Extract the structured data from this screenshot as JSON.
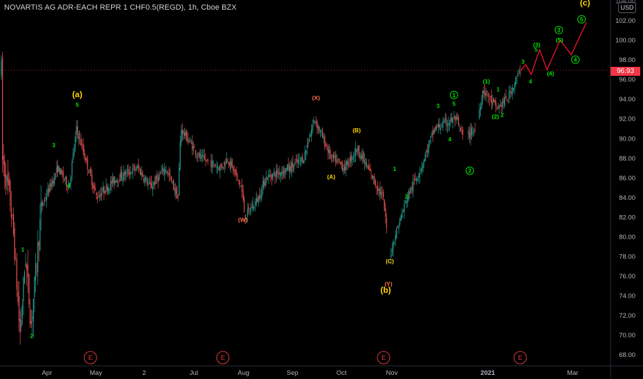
{
  "header": {
    "symbol_title": "NOVARTIS AG ADR-EACH REPR 1 CHF0.5(REGD), 1h, Cboe BZX",
    "currency": "USD"
  },
  "colors": {
    "background": "#000000",
    "up_candle": "#26a69a",
    "down_candle": "#ef5350",
    "wave_green": "#00e600",
    "wave_yellow": "#ffd600",
    "wave_red_label": "#ff6b4a",
    "projection_line": "#e8112d",
    "earnings_marker": "#e03a3a",
    "axis_text": "#b2b5be",
    "last_price_bg": "#f23645"
  },
  "chart_data": {
    "type": "candlestick",
    "title": "NOVARTIS AG ADR-EACH REPR 1 CHF0.5(REGD), 1h, Cboe BZX",
    "currency": "USD",
    "last_price": 96.93,
    "ylim": [
      67,
      104
    ],
    "y_ticks": [
      68,
      70,
      72,
      74,
      76,
      78,
      80,
      82,
      84,
      86,
      88,
      90,
      92,
      94,
      96,
      98,
      100,
      102,
      104
    ],
    "x_ticks": [
      "Apr",
      "May",
      "2",
      "Jul",
      "Aug",
      "Sep",
      "Oct",
      "Nov",
      "2021",
      "Mar"
    ],
    "grid": false,
    "price_path": [
      [
        "Mar",
        88
      ],
      [
        "Mar",
        84
      ],
      [
        "Mar",
        80
      ],
      [
        "Mar",
        70
      ],
      [
        "Mar",
        78
      ],
      [
        "Apr",
        71
      ],
      [
        "Apr",
        83
      ],
      [
        "Apr",
        87
      ],
      [
        "Apr",
        85
      ],
      [
        "May",
        91
      ],
      [
        "May",
        84
      ],
      [
        "May",
        86
      ],
      [
        "May",
        87
      ],
      [
        "Jun",
        85
      ],
      [
        "Jun",
        87
      ],
      [
        "Jun",
        84
      ],
      [
        "Jun",
        91
      ],
      [
        "Jul",
        88
      ],
      [
        "Jul",
        87
      ],
      [
        "Jul",
        88
      ],
      [
        "Aug",
        85
      ],
      [
        "Aug",
        82
      ],
      [
        "Aug",
        84
      ],
      [
        "Aug",
        86
      ],
      [
        "Sep",
        87
      ],
      [
        "Sep",
        88
      ],
      [
        "Sep",
        92
      ],
      [
        "Oct",
        88
      ],
      [
        "Oct",
        87
      ],
      [
        "Oct",
        89
      ],
      [
        "Oct",
        86
      ],
      [
        "Nov",
        84
      ],
      [
        "Nov",
        78
      ],
      [
        "Nov",
        80
      ],
      [
        "Nov",
        84
      ],
      [
        "Nov",
        87
      ],
      [
        "Dec",
        91
      ],
      [
        "Dec",
        92
      ],
      [
        "Dec",
        90
      ],
      [
        "Dec",
        91
      ],
      [
        "Dec",
        95
      ],
      [
        "2021",
        93
      ],
      [
        "2021",
        94
      ],
      [
        "2021",
        97
      ]
    ],
    "projection": [
      [
        "Jan",
        96.9
      ],
      [
        "Jan",
        97.5
      ],
      [
        "Feb",
        96.5
      ],
      [
        "Feb",
        99
      ],
      [
        "Feb",
        97
      ],
      [
        "Feb",
        100
      ],
      [
        "Mar",
        98.5
      ],
      [
        "Mar",
        101.8
      ]
    ],
    "wave_labels": [
      {
        "text": "(a)",
        "price": 94.2,
        "color": "yellow",
        "size": "large"
      },
      {
        "text": "5",
        "price": 93.2,
        "color": "green"
      },
      {
        "text": "3",
        "price": 89.1,
        "color": "green"
      },
      {
        "text": "4",
        "price": 85.0,
        "color": "green"
      },
      {
        "text": "1",
        "price": 78.5,
        "color": "green"
      },
      {
        "text": "2",
        "price": 69.7,
        "color": "green"
      },
      {
        "text": "(X)",
        "price": 93.9,
        "color": "red"
      },
      {
        "text": "(W)",
        "price": 81.5,
        "color": "red"
      },
      {
        "text": "(B)",
        "price": 90.6,
        "color": "yellow"
      },
      {
        "text": "(A)",
        "price": 85.9,
        "color": "yellow"
      },
      {
        "text": "(C)",
        "price": 77.3,
        "color": "yellow"
      },
      {
        "text": "(Y)",
        "price": 75.0,
        "color": "red"
      },
      {
        "text": "(b)",
        "price": 74.3,
        "color": "yellow",
        "size": "large"
      },
      {
        "text": "1",
        "price": 86.7,
        "color": "green"
      },
      {
        "text": "2",
        "price": 83.9,
        "color": "green"
      },
      {
        "text": "3",
        "price": 93.1,
        "color": "green"
      },
      {
        "text": "4",
        "price": 89.7,
        "color": "green"
      },
      {
        "text": "5",
        "price": 93.3,
        "color": "green"
      },
      {
        "text": "1",
        "price": 94.2,
        "color": "green",
        "circled": true
      },
      {
        "text": "2",
        "price": 86.5,
        "color": "green",
        "circled": true
      },
      {
        "text": "(1)",
        "price": 95.6,
        "color": "green"
      },
      {
        "text": "1",
        "price": 94.8,
        "color": "green"
      },
      {
        "text": "(2)",
        "price": 92.0,
        "color": "green"
      },
      {
        "text": "2",
        "price": 92.2,
        "color": "green"
      },
      {
        "text": "3",
        "price": 97.6,
        "color": "green"
      },
      {
        "text": "4",
        "price": 95.6,
        "color": "green"
      },
      {
        "text": "(3)",
        "price": 99.3,
        "color": "green"
      },
      {
        "text": "5",
        "price": 98.8,
        "color": "green"
      },
      {
        "text": "(4)",
        "price": 96.4,
        "color": "green"
      },
      {
        "text": "3",
        "price": 100.8,
        "color": "green",
        "circled": true
      },
      {
        "text": "(5)",
        "price": 99.8,
        "color": "green"
      },
      {
        "text": "4",
        "price": 97.8,
        "color": "green",
        "circled": true
      },
      {
        "text": "5",
        "price": 101.9,
        "color": "green",
        "circled": true
      },
      {
        "text": "(c)",
        "price": 103.5,
        "color": "yellow",
        "size": "large"
      }
    ],
    "earnings_markers": [
      "E",
      "E",
      "E",
      "E"
    ]
  }
}
